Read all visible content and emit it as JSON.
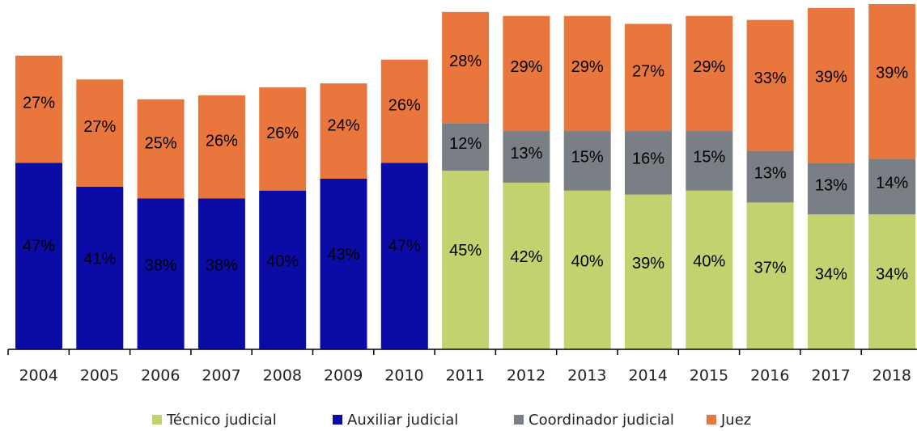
{
  "chart_data": {
    "type": "stacked_bar",
    "categories": [
      "2004",
      "2005",
      "2006",
      "2007",
      "2008",
      "2009",
      "2010",
      "2011",
      "2012",
      "2013",
      "2014",
      "2015",
      "2016",
      "2017",
      "2018"
    ],
    "series": [
      {
        "name": "Técnico judicial",
        "color": "#c3d16f",
        "values": [
          null,
          null,
          null,
          null,
          null,
          null,
          null,
          45,
          42,
          40,
          39,
          40,
          37,
          34,
          34
        ],
        "value_labels": [
          null,
          null,
          null,
          null,
          null,
          null,
          null,
          "45%",
          "42%",
          "40%",
          "39%",
          "40%",
          "37%",
          "34%",
          "34%"
        ]
      },
      {
        "name": "Auxiliar judicial",
        "color": "#0b0ba6",
        "values": [
          47,
          41,
          38,
          38,
          40,
          43,
          47,
          null,
          null,
          null,
          null,
          null,
          null,
          null,
          null
        ],
        "value_labels": [
          "47%",
          "41%",
          "38%",
          "38%",
          "40%",
          "43%",
          "47%",
          null,
          null,
          null,
          null,
          null,
          null,
          null,
          null
        ]
      },
      {
        "name": "Coordinador judicial",
        "color": "#7a7f86",
        "values": [
          null,
          null,
          null,
          null,
          null,
          null,
          null,
          12,
          13,
          15,
          16,
          15,
          13,
          13,
          14
        ],
        "value_labels": [
          null,
          null,
          null,
          null,
          null,
          null,
          null,
          "12%",
          "13%",
          "15%",
          "16%",
          "15%",
          "13%",
          "13%",
          "14%"
        ]
      },
      {
        "name": "Juez",
        "color": "#e9763d",
        "values": [
          27,
          27,
          25,
          26,
          26,
          24,
          26,
          28,
          29,
          29,
          27,
          29,
          33,
          39,
          39
        ],
        "value_labels": [
          "27%",
          "27%",
          "25%",
          "26%",
          "26%",
          "24%",
          "26%",
          "28%",
          "29%",
          "29%",
          "27%",
          "29%",
          "33%",
          "39%",
          "39%"
        ]
      }
    ]
  }
}
